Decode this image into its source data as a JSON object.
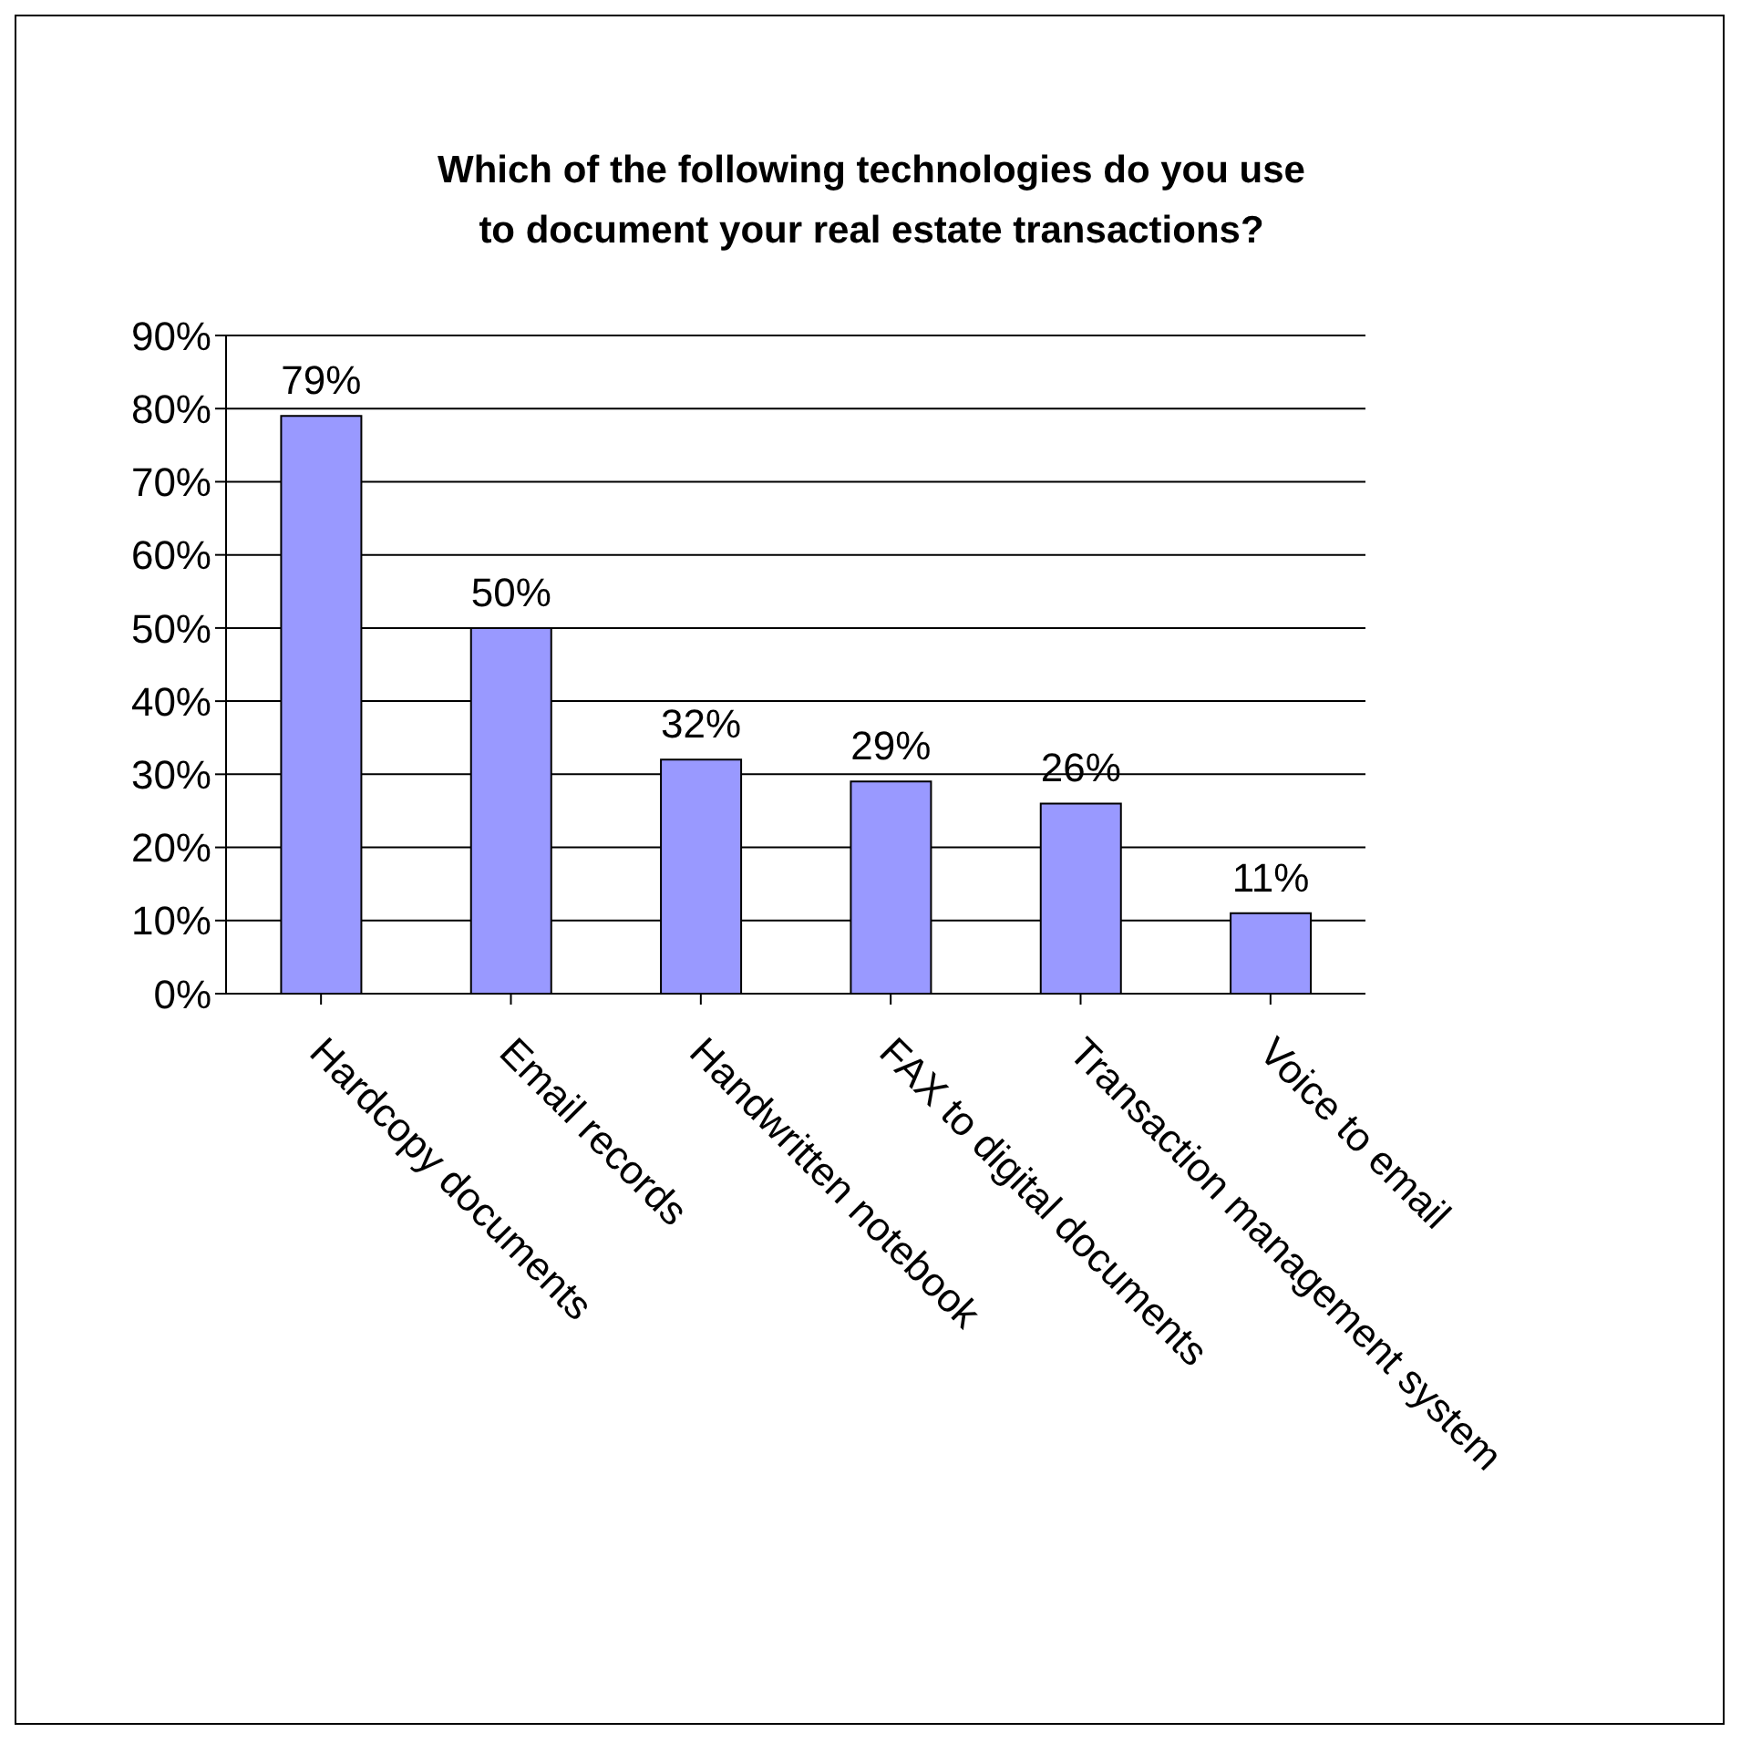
{
  "chart_data": {
    "type": "bar",
    "title": "Which of the following technologies do you use\nto document your real estate transactions?",
    "categories": [
      "Hardcopy documents",
      "Email records",
      "Handwritten notebook",
      "FAX to digital documents",
      "Transaction management system",
      "Voice to email"
    ],
    "values": [
      79,
      50,
      32,
      29,
      26,
      11
    ],
    "value_labels": [
      "79%",
      "50%",
      "32%",
      "29%",
      "26%",
      "11%"
    ],
    "color": "#9999ff",
    "ylim": [
      0,
      90
    ],
    "yticks": [
      {
        "value": 0,
        "label": "0%"
      },
      {
        "value": 10,
        "label": "10%"
      },
      {
        "value": 20,
        "label": "20%"
      },
      {
        "value": 30,
        "label": "30%"
      },
      {
        "value": 40,
        "label": "40%"
      },
      {
        "value": 50,
        "label": "50%"
      },
      {
        "value": 60,
        "label": "60%"
      },
      {
        "value": 70,
        "label": "70%"
      },
      {
        "value": 80,
        "label": "80%"
      },
      {
        "value": 90,
        "label": "90%"
      }
    ],
    "grid": "y",
    "legend": false
  }
}
